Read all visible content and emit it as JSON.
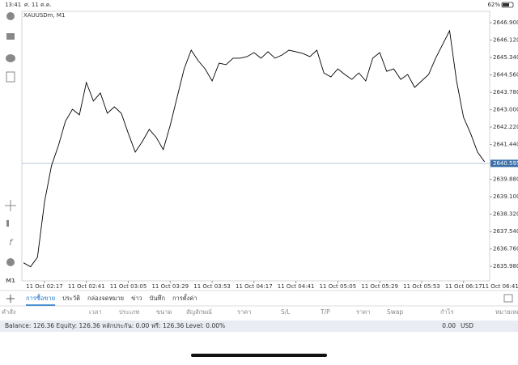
{
  "status_bar": {
    "time": "13:41",
    "date": "ศ. 11 ต.ค.",
    "battery": "62%"
  },
  "side_panel": {
    "timeframe": "M1"
  },
  "chart_data": {
    "type": "line",
    "title": "XAUUSDm, M1",
    "color": "#000000",
    "values": [
      2636.14,
      2635.96,
      2636.39,
      2638.86,
      2640.49,
      2641.39,
      2642.48,
      2643.02,
      2642.77,
      2644.22,
      2643.39,
      2643.75,
      2642.84,
      2643.13,
      2642.84,
      2641.94,
      2641.1,
      2641.57,
      2642.12,
      2641.76,
      2641.21,
      2642.3,
      2643.57,
      2644.83,
      2645.67,
      2645.2,
      2644.83,
      2644.29,
      2645.09,
      2645.02,
      2645.31,
      2645.31,
      2645.38,
      2645.56,
      2645.31,
      2645.6,
      2645.31,
      2645.45,
      2645.67,
      2645.6,
      2645.52,
      2645.38,
      2645.67,
      2644.65,
      2644.47,
      2644.83,
      2644.58,
      2644.36,
      2644.65,
      2644.29,
      2645.31,
      2645.56,
      2644.72,
      2644.83,
      2644.36,
      2644.58,
      2644.0,
      2644.29,
      2644.58,
      2645.31,
      2645.92,
      2646.54,
      2644.29,
      2642.66,
      2641.94,
      2641.1,
      2640.67
    ],
    "xlim": [
      -0.24,
      66.74
    ],
    "xticks": [
      {
        "value": 3,
        "label": "11 Oct 02:17"
      },
      {
        "value": 9,
        "label": "11 Oct 02:41"
      },
      {
        "value": 15,
        "label": "11 Oct 03:05"
      },
      {
        "value": 21,
        "label": "11 Oct 03:29"
      },
      {
        "value": 27,
        "label": "11 Oct 03:53"
      },
      {
        "value": 33,
        "label": "11 Oct 04:17"
      },
      {
        "value": 39,
        "label": "11 Oct 04:41"
      },
      {
        "value": 45,
        "label": "11 Oct 05:05"
      },
      {
        "value": 51,
        "label": "11 Oct 05:29"
      },
      {
        "value": 57,
        "label": "11 Oct 05:53"
      },
      {
        "value": 63,
        "label": "11 Oct 06:17"
      },
      {
        "value": 69,
        "label": "11 Oct 06:41"
      }
    ],
    "ylim": [
      2635.33,
      2647.41
    ],
    "yticks": [
      {
        "value": 2646.9,
        "label": "2646.900"
      },
      {
        "value": 2646.12,
        "label": "2646.120"
      },
      {
        "value": 2645.34,
        "label": "2645.340"
      },
      {
        "value": 2644.56,
        "label": "2644.560"
      },
      {
        "value": 2643.78,
        "label": "2643.780"
      },
      {
        "value": 2643,
        "label": "2643.000"
      },
      {
        "value": 2642.22,
        "label": "2642.220"
      },
      {
        "value": 2641.44,
        "label": "2641.440"
      },
      {
        "value": 2639.88,
        "label": "2639.880"
      },
      {
        "value": 2639.1,
        "label": "2639.100"
      },
      {
        "value": 2638.32,
        "label": "2638.320"
      },
      {
        "value": 2637.54,
        "label": "2637.540"
      },
      {
        "value": 2636.76,
        "label": "2636.760"
      },
      {
        "value": 2635.98,
        "label": "2635.980"
      }
    ],
    "current_price": 2640.595
  },
  "tabs": [
    "การซื้อขาย",
    "ประวัติ",
    "กล่องจดหมาย",
    "ข่าว",
    "บันทึก",
    "การตั้งค่า"
  ],
  "columns": [
    "คำสั่ง",
    "เวลา",
    "ประเภท",
    "ขนาด",
    "สัญลักษณ์",
    "ราคา",
    "S/L",
    "T/P",
    "ราคา",
    "Swap",
    "กำไร",
    "หมายเหตุ"
  ],
  "account": {
    "summary": "Balance: 126.36 Equity: 126.36 หลักประกัน: 0.00 ฟรี: 126.36 Level: 0.00%",
    "profit": "0.00",
    "currency": "USD"
  }
}
